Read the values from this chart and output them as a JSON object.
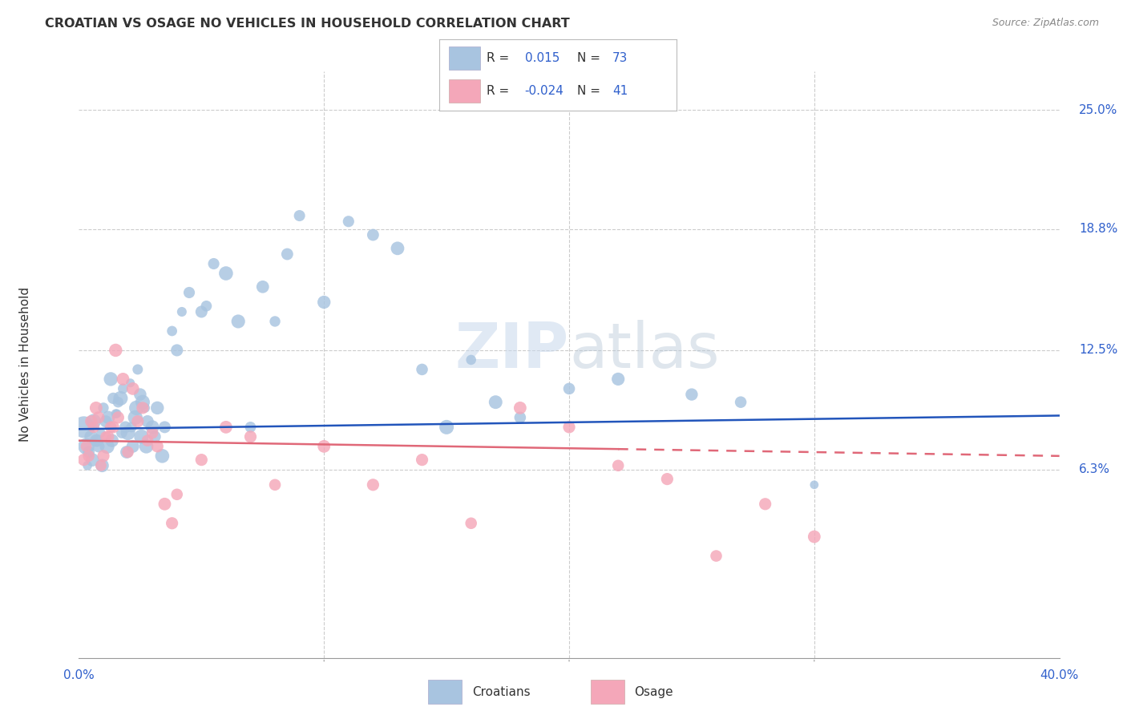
{
  "title": "CROATIAN VS OSAGE NO VEHICLES IN HOUSEHOLD CORRELATION CHART",
  "source": "Source: ZipAtlas.com",
  "ylabel": "No Vehicles in Household",
  "ytick_labels": [
    "6.3%",
    "12.5%",
    "18.8%",
    "25.0%"
  ],
  "ytick_values": [
    6.3,
    12.5,
    18.8,
    25.0
  ],
  "xlim": [
    0.0,
    40.0
  ],
  "ylim_bottom": -3.5,
  "ylim_top": 27.0,
  "legend_r_croatian": "0.015",
  "legend_n_croatian": "73",
  "legend_r_osage": "-0.024",
  "legend_n_osage": "41",
  "croatian_color": "#a8c4e0",
  "osage_color": "#f4a7b9",
  "trend_croatian_color": "#2255bb",
  "trend_osage_color": "#e06878",
  "background_color": "#ffffff",
  "watermark": "ZIPatlas",
  "label_color": "#3060cc",
  "grid_color": "#cccccc",
  "croatians_x": [
    0.2,
    0.3,
    0.4,
    0.5,
    0.6,
    0.7,
    0.8,
    0.9,
    1.0,
    1.1,
    1.2,
    1.3,
    1.4,
    1.5,
    1.6,
    1.7,
    1.8,
    1.9,
    2.0,
    2.1,
    2.2,
    2.3,
    2.4,
    2.5,
    2.6,
    2.7,
    2.8,
    3.0,
    3.2,
    3.5,
    3.8,
    4.0,
    4.5,
    5.0,
    5.5,
    6.0,
    6.5,
    7.0,
    7.5,
    8.0,
    8.5,
    9.0,
    10.0,
    11.0,
    12.0,
    13.0,
    14.0,
    15.0,
    16.0,
    17.0,
    18.0,
    20.0,
    22.0,
    25.0,
    27.0,
    30.0,
    0.35,
    0.55,
    0.75,
    0.95,
    1.15,
    1.35,
    1.55,
    1.75,
    1.95,
    2.15,
    2.35,
    2.55,
    2.75,
    3.1,
    3.4,
    4.2,
    5.2
  ],
  "croatians_y": [
    8.5,
    7.5,
    7.2,
    8.0,
    8.8,
    7.8,
    7.5,
    8.2,
    9.5,
    8.8,
    9.0,
    11.0,
    10.0,
    9.2,
    9.8,
    10.0,
    10.5,
    8.5,
    8.2,
    10.8,
    7.5,
    9.0,
    11.5,
    10.2,
    9.8,
    9.5,
    8.8,
    8.5,
    9.5,
    8.5,
    13.5,
    12.5,
    15.5,
    14.5,
    17.0,
    16.5,
    14.0,
    8.5,
    15.8,
    14.0,
    17.5,
    19.5,
    15.0,
    19.2,
    18.5,
    17.8,
    11.5,
    8.5,
    12.0,
    9.8,
    9.0,
    10.5,
    11.0,
    10.2,
    9.8,
    5.5,
    6.5,
    6.8,
    7.8,
    6.5,
    7.5,
    7.8,
    9.2,
    8.2,
    7.2,
    8.5,
    9.5,
    8.0,
    7.5,
    8.0,
    7.0,
    14.5,
    14.8
  ],
  "osage_x": [
    0.2,
    0.3,
    0.4,
    0.5,
    0.6,
    0.7,
    0.8,
    0.9,
    1.0,
    1.1,
    1.2,
    1.3,
    1.4,
    1.5,
    1.6,
    1.8,
    2.0,
    2.2,
    2.4,
    2.6,
    2.8,
    3.0,
    3.2,
    3.5,
    3.8,
    4.0,
    5.0,
    6.0,
    7.0,
    8.0,
    10.0,
    12.0,
    14.0,
    16.0,
    18.0,
    20.0,
    22.0,
    24.0,
    26.0,
    28.0,
    30.0
  ],
  "osage_y": [
    6.8,
    7.5,
    7.0,
    8.8,
    8.5,
    9.5,
    9.0,
    6.5,
    7.0,
    8.0,
    8.0,
    8.5,
    8.5,
    12.5,
    9.0,
    11.0,
    7.2,
    10.5,
    8.8,
    9.5,
    7.8,
    8.2,
    7.5,
    4.5,
    3.5,
    5.0,
    6.8,
    8.5,
    8.0,
    5.5,
    7.5,
    5.5,
    6.8,
    3.5,
    9.5,
    8.5,
    6.5,
    5.8,
    1.8,
    4.5,
    2.8
  ],
  "osage_sizes": [
    120,
    100,
    110,
    120,
    110,
    130,
    120,
    100,
    120,
    100,
    110,
    110,
    120,
    140,
    120,
    130,
    110,
    130,
    120,
    120,
    110,
    110,
    120,
    130,
    120,
    110,
    120,
    130,
    120,
    110,
    130,
    120,
    120,
    110,
    130,
    120,
    110,
    120,
    110,
    120,
    130
  ],
  "trend_c_x0": 0,
  "trend_c_y0": 8.4,
  "trend_c_x1": 40,
  "trend_c_y1": 9.1,
  "trend_o_x0": 0,
  "trend_o_y0": 7.8,
  "trend_o_x1": 40,
  "trend_o_y1": 7.0,
  "trend_o_solid_end": 22,
  "xtick_minor": [
    10,
    20,
    30
  ]
}
